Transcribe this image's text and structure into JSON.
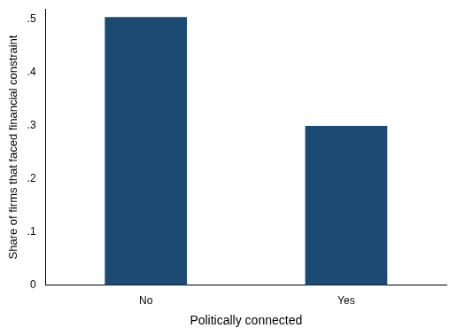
{
  "chart_data": {
    "type": "bar",
    "x_label": "Politically connected",
    "y_label": "Share of firms that faced financial constraint",
    "categories": [
      "No",
      "Yes"
    ],
    "values": [
      0.505,
      0.3
    ],
    "color": "#1d4a72",
    "ylim": [
      0,
      0.52
    ],
    "yticks": [
      0,
      {
        "value": 0.1,
        "label": ".1"
      },
      {
        "value": 0.2,
        "label": ".2"
      },
      {
        "value": 0.3,
        "label": ".3"
      },
      {
        "value": 0.4,
        "label": ".4"
      },
      {
        "value": 0.5,
        "label": ".5"
      }
    ],
    "grid": false
  }
}
